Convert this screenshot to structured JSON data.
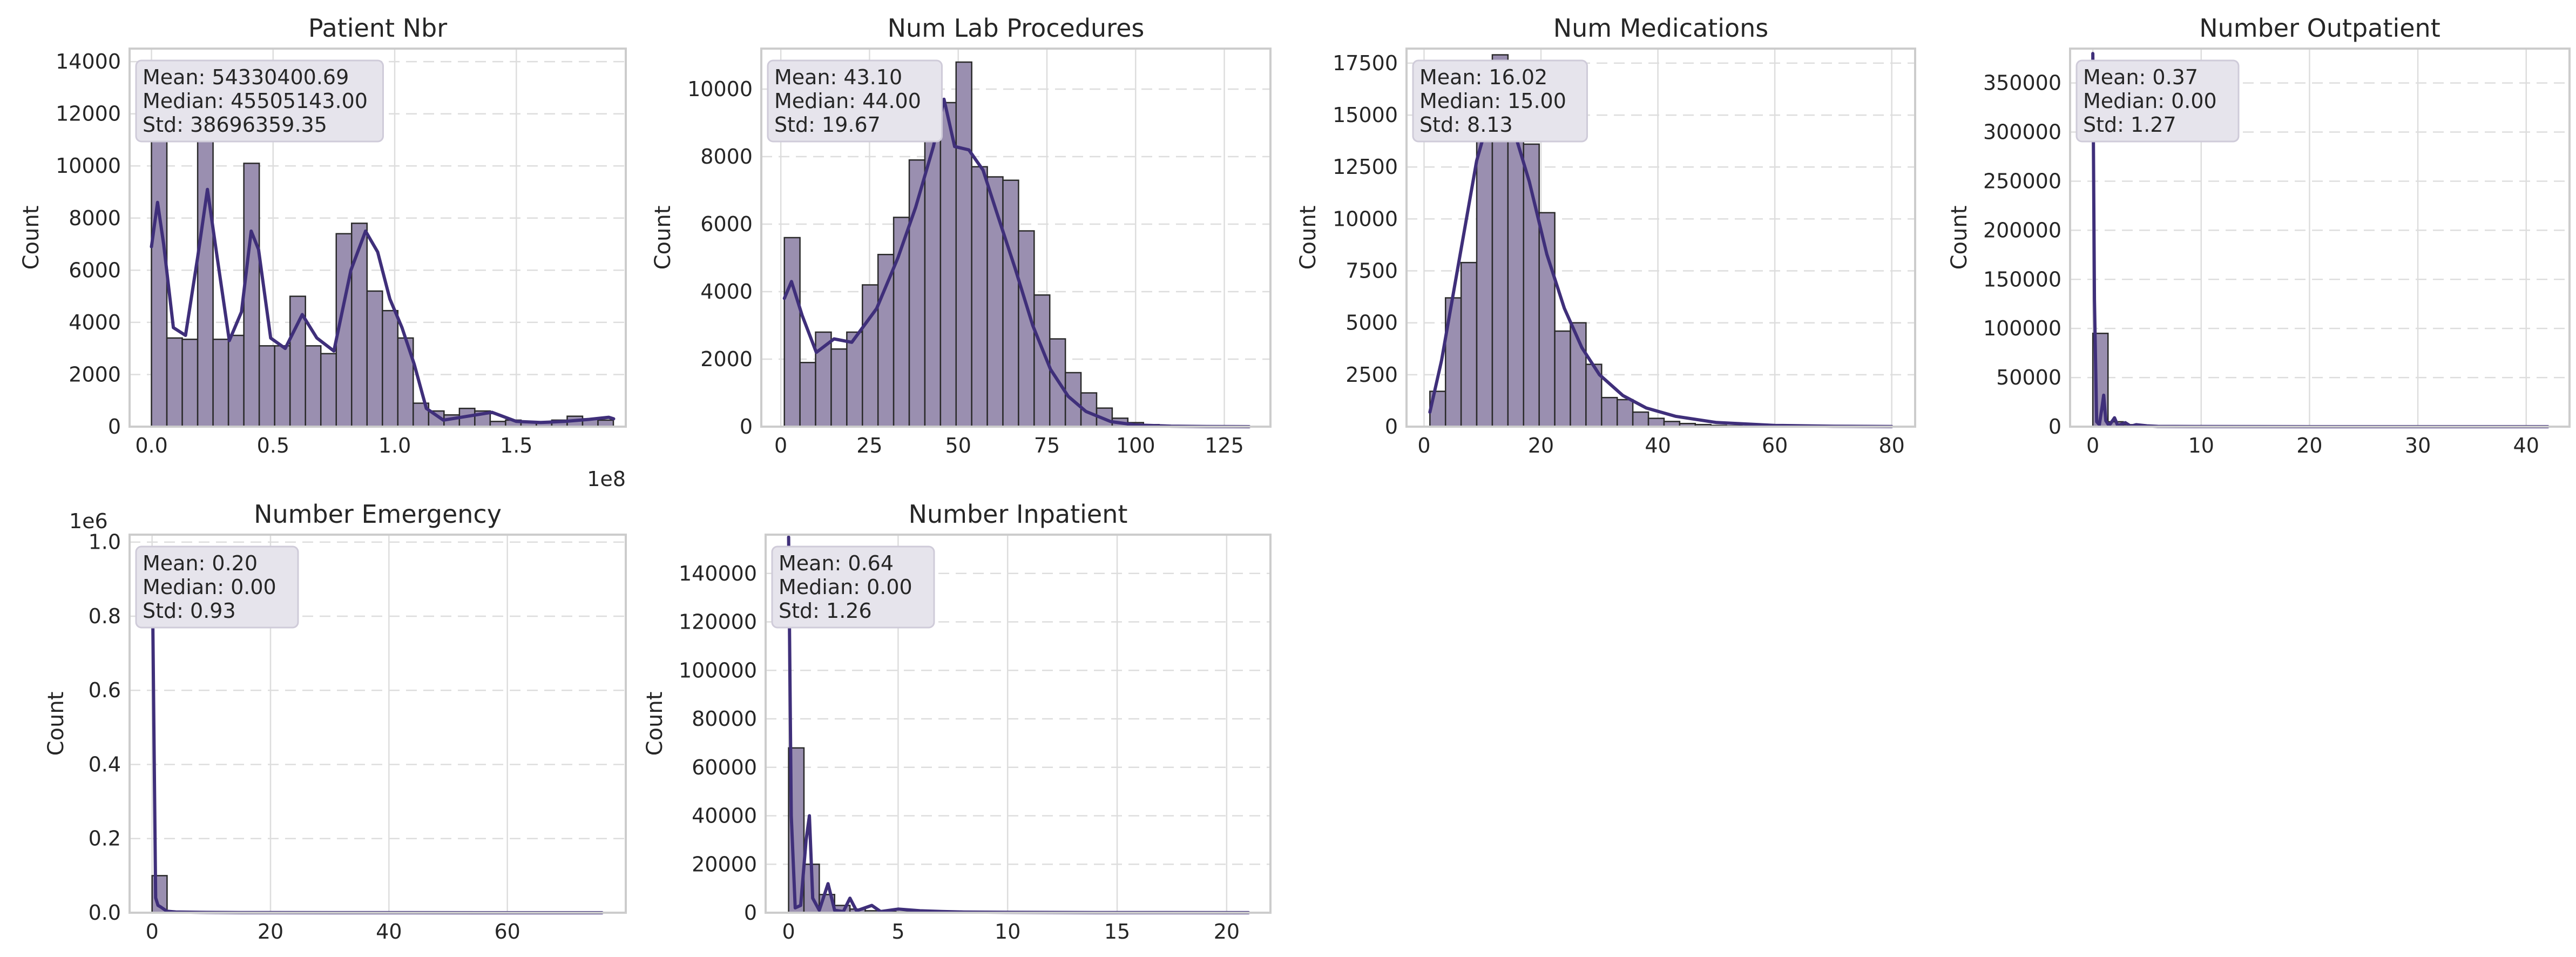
{
  "chart_data": [
    {
      "type": "histogram",
      "title": "Patient Nbr",
      "xlabel": "",
      "ylabel": "Count",
      "x_offset_label": "1e8",
      "y_offset_label": "",
      "xlim": [
        -0.09,
        1.95
      ],
      "ylim": [
        0,
        14500
      ],
      "xticks": [
        0.0,
        0.5,
        1.0,
        1.5
      ],
      "xtick_labels": [
        "0.0",
        "0.5",
        "1.0",
        "1.5"
      ],
      "yticks": [
        0,
        2000,
        4000,
        6000,
        8000,
        10000,
        12000,
        14000
      ],
      "ytick_labels": [
        "0",
        "2000",
        "4000",
        "6000",
        "8000",
        "10000",
        "12000",
        "14000"
      ],
      "bins": {
        "start": 0.0,
        "width": 0.0633,
        "counts": [
          13800,
          3400,
          3350,
          12300,
          3350,
          3500,
          10100,
          3100,
          3100,
          5000,
          3100,
          2800,
          7400,
          7800,
          5200,
          4450,
          3400,
          900,
          600,
          450,
          700,
          600,
          200,
          250,
          200,
          150,
          250,
          400,
          300,
          250
        ]
      },
      "kde": [
        [
          0.0,
          6900
        ],
        [
          0.025,
          8600
        ],
        [
          0.05,
          7000
        ],
        [
          0.09,
          3800
        ],
        [
          0.14,
          3500
        ],
        [
          0.19,
          6500
        ],
        [
          0.23,
          9100
        ],
        [
          0.27,
          6500
        ],
        [
          0.32,
          3300
        ],
        [
          0.37,
          4400
        ],
        [
          0.41,
          7500
        ],
        [
          0.44,
          6800
        ],
        [
          0.49,
          3400
        ],
        [
          0.55,
          3000
        ],
        [
          0.62,
          4300
        ],
        [
          0.68,
          3400
        ],
        [
          0.75,
          2900
        ],
        [
          0.82,
          6000
        ],
        [
          0.88,
          7500
        ],
        [
          0.93,
          6700
        ],
        [
          0.98,
          4900
        ],
        [
          1.03,
          3800
        ],
        [
          1.08,
          2400
        ],
        [
          1.13,
          700
        ],
        [
          1.2,
          250
        ],
        [
          1.3,
          400
        ],
        [
          1.4,
          550
        ],
        [
          1.5,
          200
        ],
        [
          1.6,
          160
        ],
        [
          1.7,
          200
        ],
        [
          1.8,
          280
        ],
        [
          1.88,
          360
        ],
        [
          1.9,
          300
        ]
      ],
      "stats": [
        "Mean: 54330400.69",
        "Median: 45505143.00",
        "Std: 38696359.35"
      ]
    },
    {
      "type": "histogram",
      "title": "Num Lab Procedures",
      "xlabel": "",
      "ylabel": "Count",
      "x_offset_label": "",
      "y_offset_label": "",
      "xlim": [
        -5.5,
        138
      ],
      "ylim": [
        0,
        11200
      ],
      "xticks": [
        0,
        25,
        50,
        75,
        100,
        125
      ],
      "xtick_labels": [
        "0",
        "25",
        "50",
        "75",
        "100",
        "125"
      ],
      "yticks": [
        0,
        2000,
        4000,
        6000,
        8000,
        10000
      ],
      "ytick_labels": [
        "0",
        "2000",
        "4000",
        "6000",
        "8000",
        "10000"
      ],
      "bins": {
        "start": 1.0,
        "width": 4.4,
        "counts": [
          5600,
          1900,
          2800,
          2300,
          2800,
          4200,
          5100,
          6200,
          7900,
          10300,
          9600,
          10800,
          7700,
          7400,
          7300,
          5800,
          3900,
          2600,
          1600,
          1000,
          550,
          250,
          120,
          60,
          30,
          15,
          8,
          5,
          3,
          2
        ]
      },
      "kde": [
        [
          1,
          3800
        ],
        [
          3,
          4300
        ],
        [
          6,
          3300
        ],
        [
          10,
          2200
        ],
        [
          15,
          2600
        ],
        [
          20,
          2500
        ],
        [
          27,
          3500
        ],
        [
          33,
          5000
        ],
        [
          38,
          6500
        ],
        [
          43,
          8300
        ],
        [
          46,
          9700
        ],
        [
          49,
          8300
        ],
        [
          53,
          8200
        ],
        [
          57,
          7600
        ],
        [
          61,
          6300
        ],
        [
          66,
          4700
        ],
        [
          71,
          3000
        ],
        [
          76,
          1700
        ],
        [
          81,
          900
        ],
        [
          86,
          450
        ],
        [
          93,
          150
        ],
        [
          100,
          50
        ],
        [
          110,
          15
        ],
        [
          120,
          5
        ],
        [
          132,
          0
        ]
      ],
      "stats": [
        "Mean: 43.10",
        "Median: 44.00",
        "Std: 19.67"
      ]
    },
    {
      "type": "histogram",
      "title": "Num Medications",
      "xlabel": "",
      "ylabel": "Count",
      "x_offset_label": "",
      "y_offset_label": "",
      "xlim": [
        -3,
        84
      ],
      "ylim": [
        0,
        18200
      ],
      "xticks": [
        0,
        20,
        40,
        60,
        80
      ],
      "xtick_labels": [
        "0",
        "20",
        "40",
        "60",
        "80"
      ],
      "yticks": [
        0,
        2500,
        5000,
        7500,
        10000,
        12500,
        15000,
        17500
      ],
      "ytick_labels": [
        "0",
        "2500",
        "5000",
        "7500",
        "10000",
        "12500",
        "15000",
        "17500"
      ],
      "bins": {
        "start": 1.0,
        "width": 2.67,
        "counts": [
          1700,
          6200,
          7900,
          15200,
          17900,
          16200,
          13600,
          10300,
          4600,
          5000,
          3000,
          1400,
          1300,
          700,
          400,
          250,
          150,
          100,
          60,
          40,
          25,
          15,
          10,
          8,
          5,
          3,
          2,
          2,
          1,
          1
        ]
      },
      "kde": [
        [
          1,
          700
        ],
        [
          3,
          3200
        ],
        [
          6,
          8000
        ],
        [
          9,
          12800
        ],
        [
          11,
          14800
        ],
        [
          13,
          15300
        ],
        [
          15,
          14600
        ],
        [
          18,
          11800
        ],
        [
          21,
          8300
        ],
        [
          24,
          5700
        ],
        [
          27,
          3800
        ],
        [
          30,
          2500
        ],
        [
          34,
          1500
        ],
        [
          38,
          900
        ],
        [
          43,
          500
        ],
        [
          50,
          200
        ],
        [
          60,
          60
        ],
        [
          70,
          20
        ],
        [
          80,
          5
        ]
      ],
      "stats": [
        "Mean: 16.02",
        "Median: 15.00",
        "Std: 8.13"
      ]
    },
    {
      "type": "histogram",
      "title": "Number Outpatient",
      "xlabel": "",
      "ylabel": "Count",
      "x_offset_label": "",
      "y_offset_label": "",
      "xlim": [
        -2.1,
        44
      ],
      "ylim": [
        0,
        385000
      ],
      "xticks": [
        0,
        10,
        20,
        30,
        40
      ],
      "xtick_labels": [
        "0",
        "10",
        "20",
        "30",
        "40"
      ],
      "yticks": [
        0,
        50000,
        100000,
        150000,
        200000,
        250000,
        300000,
        350000
      ],
      "ytick_labels": [
        "0",
        "50000",
        "100000",
        "150000",
        "200000",
        "250000",
        "300000",
        "350000"
      ],
      "bins": {
        "start": 0.0,
        "width": 1.4,
        "counts": [
          95000,
          5000,
          2000,
          800,
          300,
          150,
          80,
          40,
          20,
          10,
          5,
          3,
          2,
          1,
          1,
          1,
          1,
          0,
          0,
          0,
          0,
          0,
          0,
          0,
          0,
          0,
          0,
          0,
          0,
          1
        ]
      },
      "kde": [
        [
          0,
          380000
        ],
        [
          0.15,
          130000
        ],
        [
          0.35,
          5000
        ],
        [
          0.6,
          2000
        ],
        [
          0.85,
          20000
        ],
        [
          1.0,
          32000
        ],
        [
          1.2,
          6000
        ],
        [
          1.5,
          1000
        ],
        [
          2.0,
          9000
        ],
        [
          2.3,
          1000
        ],
        [
          3.0,
          4000
        ],
        [
          3.5,
          500
        ],
        [
          4.0,
          2000
        ],
        [
          5.0,
          800
        ],
        [
          6.0,
          300
        ],
        [
          10,
          100
        ],
        [
          20,
          20
        ],
        [
          30,
          10
        ],
        [
          42,
          5
        ]
      ],
      "stats": [
        "Mean: 0.37",
        "Median: 0.00",
        "Std: 1.27"
      ]
    },
    {
      "type": "histogram",
      "title": "Number Emergency",
      "xlabel": "",
      "ylabel": "Count",
      "x_offset_label": "",
      "y_offset_label": "1e6",
      "xlim": [
        -3.8,
        80
      ],
      "ylim": [
        0,
        1.02
      ],
      "xticks": [
        0,
        20,
        40,
        60
      ],
      "xtick_labels": [
        "0",
        "20",
        "40",
        "60"
      ],
      "yticks": [
        0.0,
        0.2,
        0.4,
        0.6,
        0.8,
        1.0
      ],
      "ytick_labels": [
        "0.0",
        "0.2",
        "0.4",
        "0.6",
        "0.8",
        "1.0"
      ],
      "bins": {
        "start": 0.0,
        "width": 2.53,
        "counts": [
          0.1,
          0.004,
          0.001,
          0.0004,
          0.0002,
          0.0001,
          0.0001,
          0,
          0,
          0,
          0,
          0,
          0,
          0,
          0,
          0,
          0,
          0,
          0,
          0,
          0,
          0,
          0,
          0,
          0,
          0,
          0,
          0,
          0,
          0.0001
        ]
      },
      "kde": [
        [
          0,
          0.98
        ],
        [
          0.3,
          0.5
        ],
        [
          0.6,
          0.04
        ],
        [
          1.0,
          0.02
        ],
        [
          1.5,
          0.015
        ],
        [
          2.5,
          0.004
        ],
        [
          4,
          0.002
        ],
        [
          8,
          0.001
        ],
        [
          15,
          0.0005
        ],
        [
          30,
          0.0001
        ],
        [
          76,
          0
        ]
      ],
      "stats": [
        "Mean: 0.20",
        "Median: 0.00",
        "Std: 0.93"
      ]
    },
    {
      "type": "histogram",
      "title": "Number Inpatient",
      "xlabel": "",
      "ylabel": "Count",
      "x_offset_label": "",
      "y_offset_label": "",
      "xlim": [
        -1.05,
        22
      ],
      "ylim": [
        0,
        156000
      ],
      "xticks": [
        0,
        5,
        10,
        15,
        20
      ],
      "xtick_labels": [
        "0",
        "5",
        "10",
        "15",
        "20"
      ],
      "yticks": [
        0,
        20000,
        40000,
        60000,
        80000,
        100000,
        120000,
        140000
      ],
      "ytick_labels": [
        "0",
        "20000",
        "40000",
        "60000",
        "80000",
        "100000",
        "120000",
        "140000"
      ],
      "bins": {
        "start": 0.0,
        "width": 0.7,
        "counts": [
          68000,
          20000,
          7500,
          3000,
          1500,
          800,
          400,
          250,
          150,
          100,
          60,
          40,
          30,
          20,
          15,
          10,
          8,
          5,
          4,
          3,
          2,
          2,
          1,
          1,
          1,
          1,
          1,
          1,
          1,
          1
        ]
      },
      "kde": [
        [
          0,
          155000
        ],
        [
          0.12,
          40000
        ],
        [
          0.3,
          2000
        ],
        [
          0.55,
          3000
        ],
        [
          0.8,
          30000
        ],
        [
          0.95,
          40000
        ],
        [
          1.1,
          6000
        ],
        [
          1.4,
          1000
        ],
        [
          1.8,
          12000
        ],
        [
          2.1,
          1000
        ],
        [
          2.5,
          500
        ],
        [
          2.8,
          6000
        ],
        [
          3.1,
          800
        ],
        [
          3.8,
          3000
        ],
        [
          4.2,
          500
        ],
        [
          5,
          1500
        ],
        [
          6,
          800
        ],
        [
          7,
          500
        ],
        [
          8,
          300
        ],
        [
          10,
          150
        ],
        [
          14,
          60
        ],
        [
          21,
          20
        ]
      ],
      "stats": [
        "Mean: 0.64",
        "Median: 0.00",
        "Std: 1.26"
      ]
    }
  ]
}
